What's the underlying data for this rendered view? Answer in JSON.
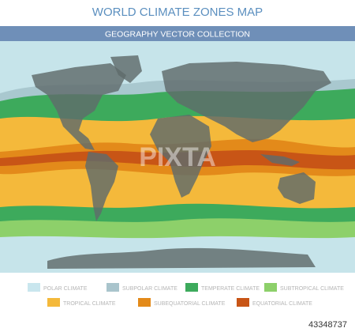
{
  "header": {
    "title": "WORLD CLIMATE ZONES MAP",
    "subtitle": "GEOGRAPHY VECTOR COLLECTION"
  },
  "legend": {
    "items": [
      {
        "label": "POLAR CLIMATE"
      },
      {
        "label": "SUBPOLAR CLIMATE"
      },
      {
        "label": "TEMPERATE CLIMATE"
      },
      {
        "label": "SUBTROPICAL CLIMATE"
      },
      {
        "label": "TROPICAL CLIMATE"
      },
      {
        "label": "SUBEQUATORIAL CLIMATE"
      },
      {
        "label": "EQUATORIAL CLIMATE"
      }
    ]
  },
  "watermark": "PIXTA",
  "footer": {
    "id": "43348737"
  }
}
